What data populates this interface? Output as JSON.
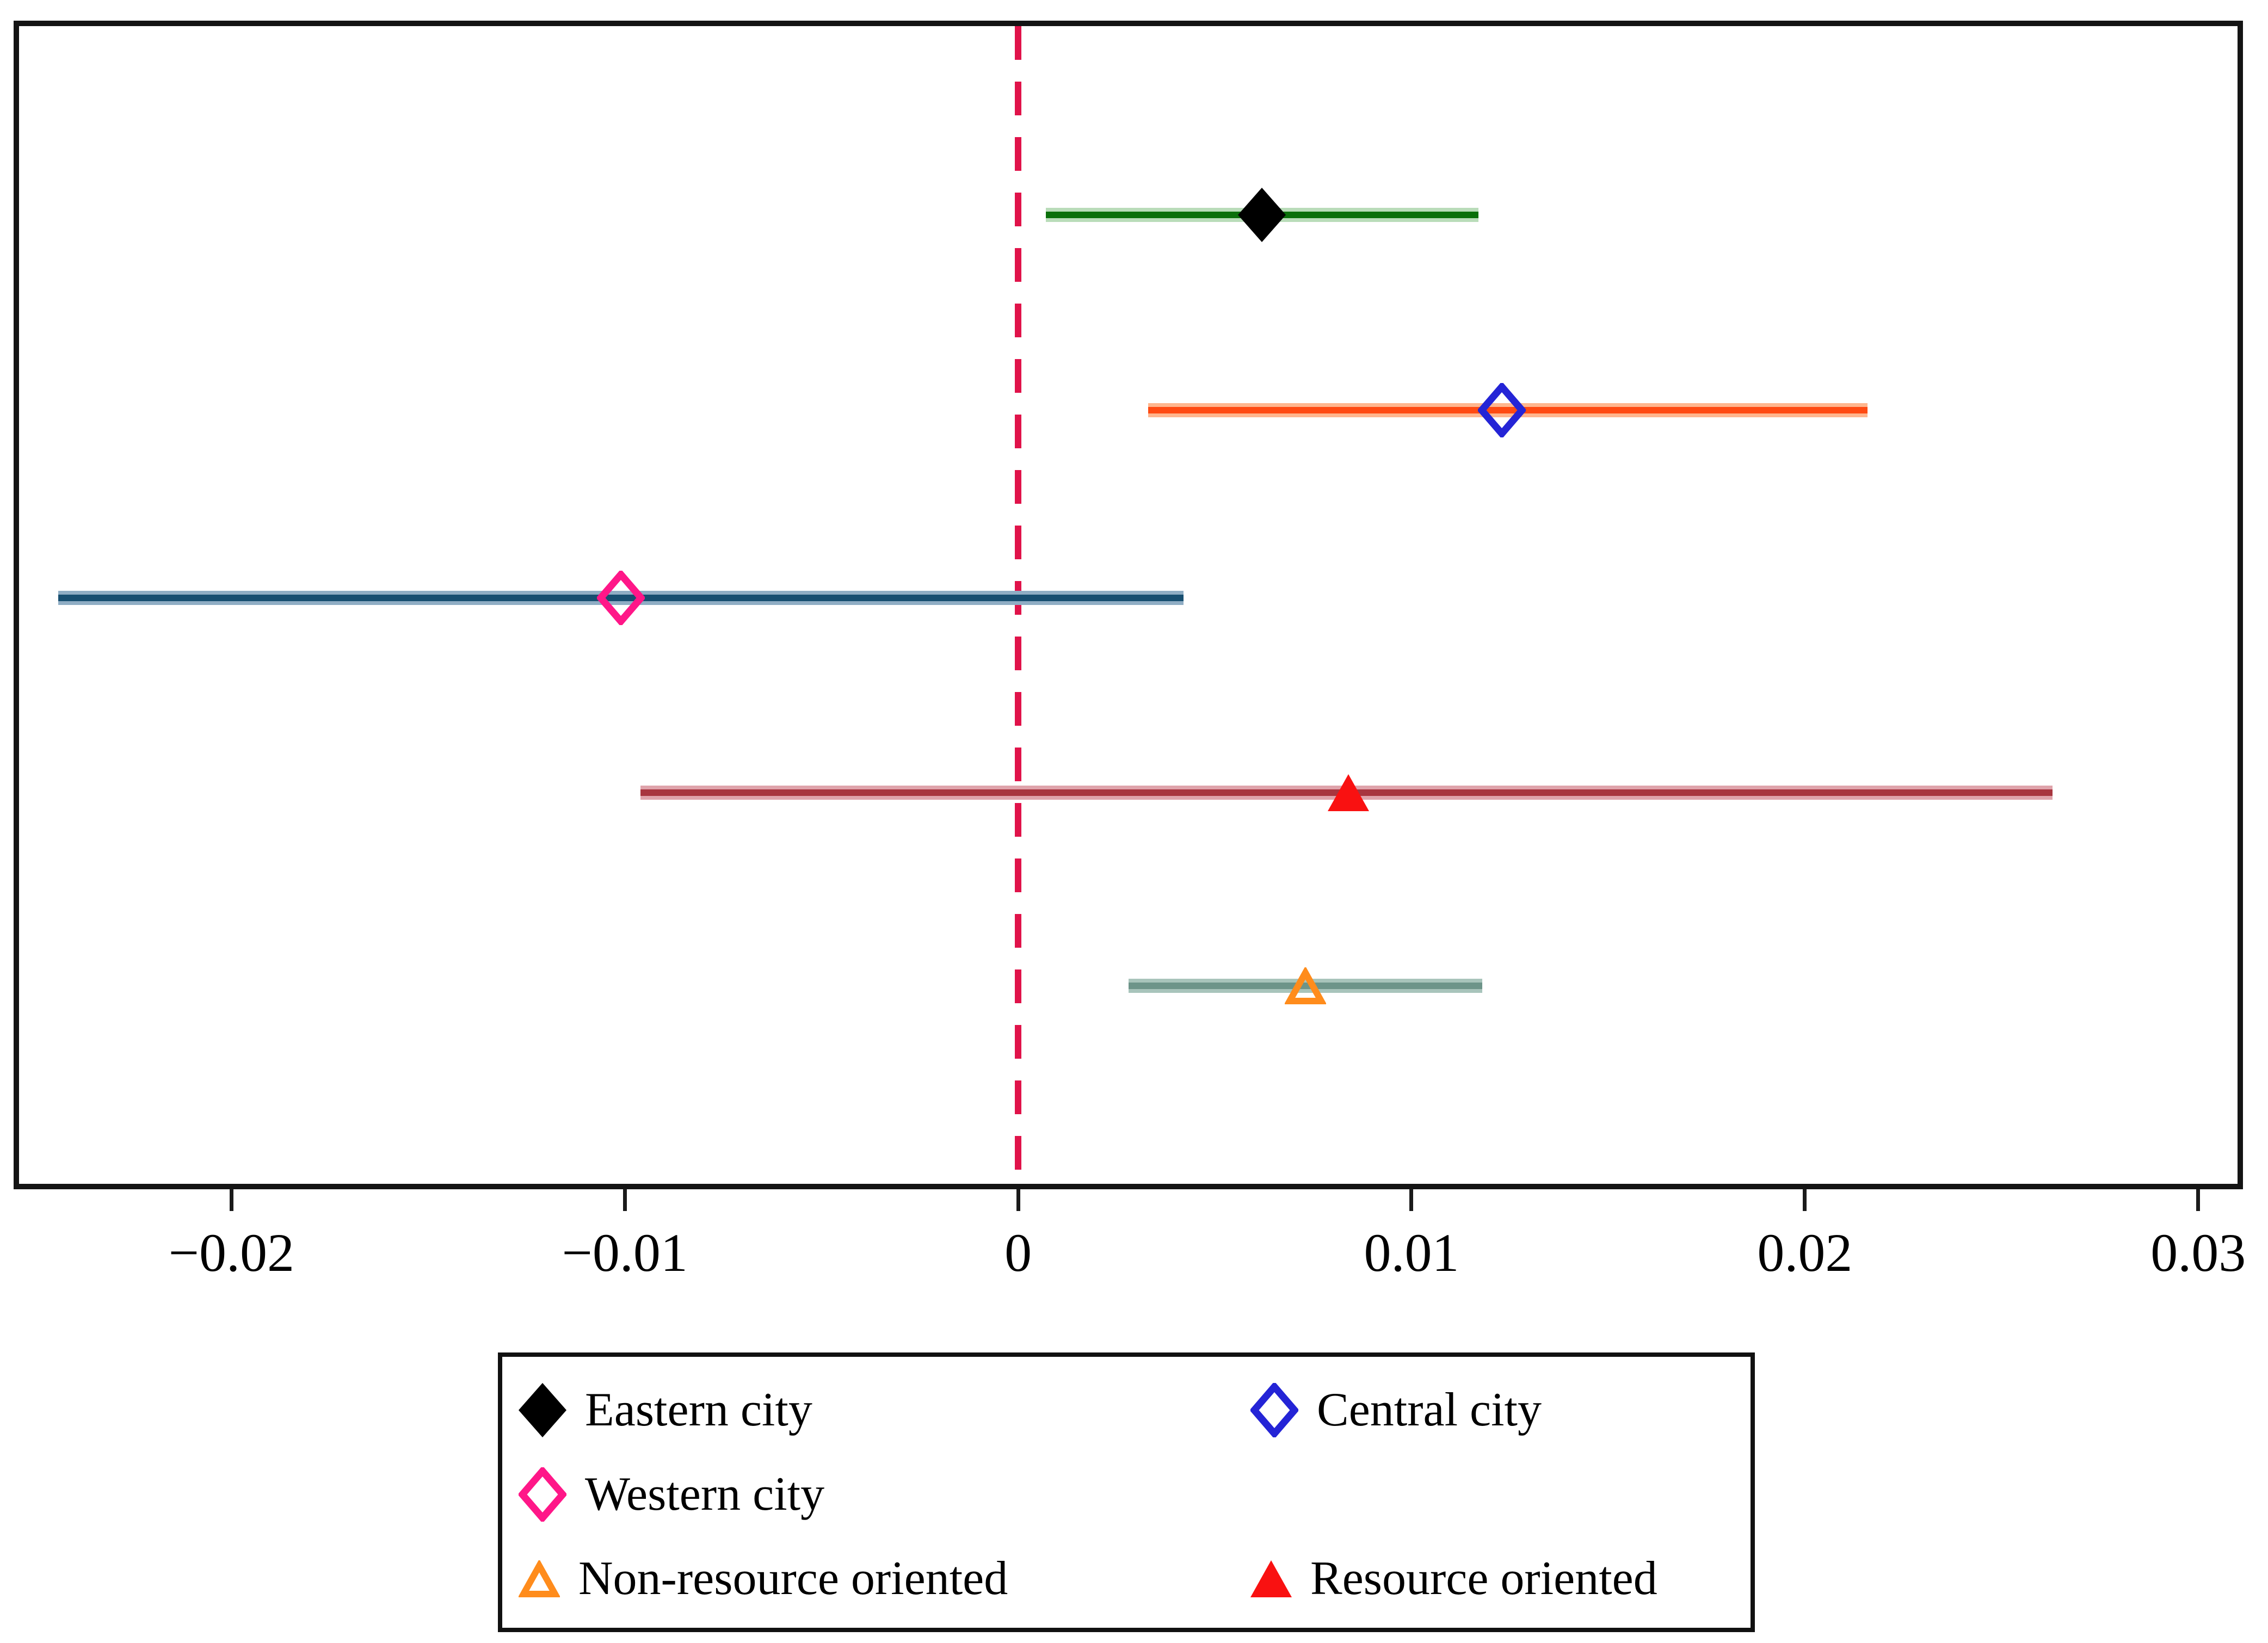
{
  "figure": {
    "background": "#ffffff",
    "frame_color": "#141414"
  },
  "chart_data": {
    "type": "forest_ci",
    "title": "",
    "xlabel": "",
    "ylabel": "",
    "grid": false,
    "xlim": [
      -0.0254,
      0.031
    ],
    "x_ticks": [
      {
        "label": "−0.02",
        "value": -0.02
      },
      {
        "label": "−0.01",
        "value": -0.01
      },
      {
        "label": "0",
        "value": 0
      },
      {
        "label": "0.01",
        "value": 0.01
      },
      {
        "label": "0.02",
        "value": 0.02
      },
      {
        "label": "0.03",
        "value": 0.03
      }
    ],
    "zero_line": {
      "value": 0,
      "color": "#e0134a",
      "style": "dashed",
      "width": 12
    },
    "series": [
      {
        "name": "Eastern city",
        "estimate": 0.0062,
        "ci_low": 0.0007,
        "ci_high": 0.0117,
        "line_color": "#0a6f0a",
        "halo_color": "#b9dcb9",
        "marker": {
          "shape": "diamond",
          "fill": "filled",
          "color": "#000000"
        },
        "row_frac": 0.163
      },
      {
        "name": "Central city",
        "estimate": 0.0123,
        "ci_low": 0.0033,
        "ci_high": 0.0216,
        "line_color": "#ff4a12",
        "halo_color": "#ffb68e",
        "marker": {
          "shape": "diamond",
          "fill": "open",
          "color": "#2424d6"
        },
        "row_frac": 0.332
      },
      {
        "name": "Western city",
        "estimate": -0.0101,
        "ci_low": -0.0244,
        "ci_high": 0.0042,
        "line_color": "#174e70",
        "halo_color": "#8fadc4",
        "marker": {
          "shape": "diamond",
          "fill": "open",
          "color": "#ff1788"
        },
        "row_frac": 0.494
      },
      {
        "name": "Resource oriented",
        "estimate": 0.0084,
        "ci_low": -0.0096,
        "ci_high": 0.0263,
        "line_color": "#a8353f",
        "halo_color": "#dfa3ab",
        "marker": {
          "shape": "triangle",
          "fill": "filled",
          "color": "#f91111"
        },
        "row_frac": 0.662
      },
      {
        "name": "Non-resource oriented",
        "estimate": 0.0073,
        "ci_low": 0.0028,
        "ci_high": 0.0118,
        "line_color": "#6d9489",
        "halo_color": "#a8c4bb",
        "marker": {
          "shape": "triangle",
          "fill": "open",
          "color": "#ff8c1c"
        },
        "row_frac": 0.829
      }
    ],
    "legend": {
      "position": "bottom",
      "border_color": "#111111",
      "items": [
        {
          "label": "Eastern city",
          "shape": "diamond",
          "fill": "filled",
          "color": "#000000"
        },
        {
          "label": "Central city",
          "shape": "diamond",
          "fill": "open",
          "color": "#2424d6"
        },
        {
          "label": "Western city",
          "shape": "diamond",
          "fill": "open",
          "color": "#ff1788"
        },
        {
          "label": "Non-resource oriented",
          "shape": "triangle",
          "fill": "open",
          "color": "#ff8c1c"
        },
        {
          "label": "Resource oriented",
          "shape": "triangle",
          "fill": "filled",
          "color": "#f91111"
        }
      ]
    }
  }
}
